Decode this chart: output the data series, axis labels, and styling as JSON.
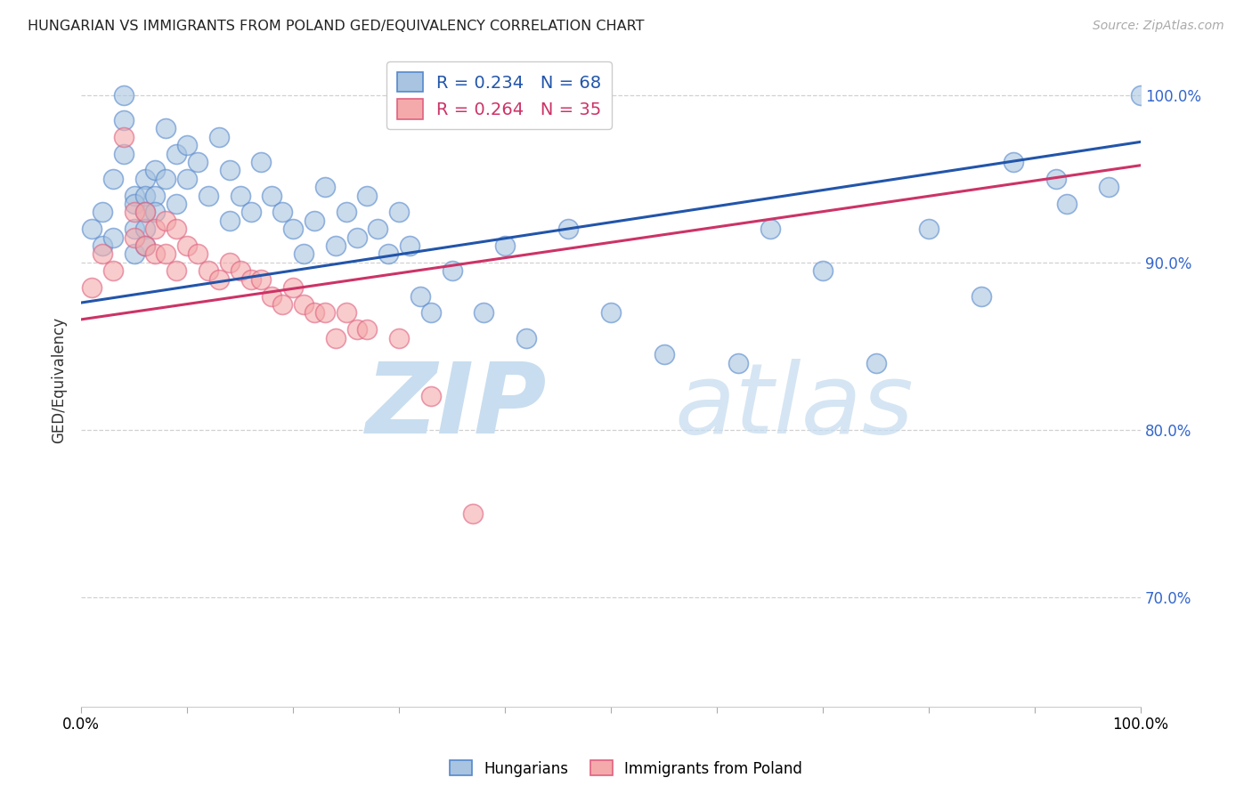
{
  "title": "HUNGARIAN VS IMMIGRANTS FROM POLAND GED/EQUIVALENCY CORRELATION CHART",
  "source": "Source: ZipAtlas.com",
  "ylabel": "GED/Equivalency",
  "xlim": [
    0.0,
    1.0
  ],
  "ylim": [
    0.635,
    1.025
  ],
  "yticks": [
    0.7,
    0.8,
    0.9,
    1.0
  ],
  "ytick_labels": [
    "70.0%",
    "80.0%",
    "90.0%",
    "100.0%"
  ],
  "xticks": [
    0.0,
    0.1,
    0.2,
    0.3,
    0.4,
    0.5,
    0.6,
    0.7,
    0.8,
    0.9,
    1.0
  ],
  "xtick_labels": [
    "0.0%",
    "",
    "",
    "",
    "",
    "",
    "",
    "",
    "",
    "",
    "100.0%"
  ],
  "blue_color": "#A8C4E0",
  "pink_color": "#F4AAAA",
  "blue_edge_color": "#5588CC",
  "pink_edge_color": "#E06080",
  "blue_line_color": "#2255AA",
  "pink_line_color": "#CC3366",
  "legend_blue_R": "0.234",
  "legend_blue_N": "68",
  "legend_pink_R": "0.264",
  "legend_pink_N": "35",
  "blue_line_y_start": 0.876,
  "blue_line_y_end": 0.972,
  "pink_line_y_start": 0.866,
  "pink_line_y_end": 0.958,
  "blue_scatter_x": [
    0.01,
    0.02,
    0.02,
    0.03,
    0.03,
    0.04,
    0.04,
    0.04,
    0.05,
    0.05,
    0.05,
    0.05,
    0.06,
    0.06,
    0.06,
    0.06,
    0.06,
    0.07,
    0.07,
    0.07,
    0.08,
    0.08,
    0.09,
    0.09,
    0.1,
    0.1,
    0.11,
    0.12,
    0.13,
    0.14,
    0.14,
    0.15,
    0.16,
    0.17,
    0.18,
    0.19,
    0.2,
    0.21,
    0.22,
    0.23,
    0.24,
    0.25,
    0.26,
    0.27,
    0.28,
    0.29,
    0.3,
    0.31,
    0.32,
    0.33,
    0.35,
    0.38,
    0.4,
    0.42,
    0.46,
    0.5,
    0.55,
    0.62,
    0.65,
    0.7,
    0.75,
    0.8,
    0.85,
    0.88,
    0.92,
    0.93,
    0.97,
    1.0
  ],
  "blue_scatter_y": [
    0.92,
    0.93,
    0.91,
    0.95,
    0.915,
    0.965,
    0.985,
    1.0,
    0.94,
    0.935,
    0.92,
    0.905,
    0.95,
    0.94,
    0.93,
    0.92,
    0.91,
    0.955,
    0.94,
    0.93,
    0.98,
    0.95,
    0.965,
    0.935,
    0.97,
    0.95,
    0.96,
    0.94,
    0.975,
    0.955,
    0.925,
    0.94,
    0.93,
    0.96,
    0.94,
    0.93,
    0.92,
    0.905,
    0.925,
    0.945,
    0.91,
    0.93,
    0.915,
    0.94,
    0.92,
    0.905,
    0.93,
    0.91,
    0.88,
    0.87,
    0.895,
    0.87,
    0.91,
    0.855,
    0.92,
    0.87,
    0.845,
    0.84,
    0.92,
    0.895,
    0.84,
    0.92,
    0.88,
    0.96,
    0.95,
    0.935,
    0.945,
    1.0
  ],
  "pink_scatter_x": [
    0.01,
    0.02,
    0.03,
    0.04,
    0.05,
    0.05,
    0.06,
    0.06,
    0.07,
    0.07,
    0.08,
    0.08,
    0.09,
    0.09,
    0.1,
    0.11,
    0.12,
    0.13,
    0.14,
    0.15,
    0.16,
    0.17,
    0.18,
    0.19,
    0.2,
    0.21,
    0.22,
    0.23,
    0.24,
    0.25,
    0.26,
    0.27,
    0.3,
    0.33,
    0.37
  ],
  "pink_scatter_y": [
    0.885,
    0.905,
    0.895,
    0.975,
    0.93,
    0.915,
    0.93,
    0.91,
    0.92,
    0.905,
    0.925,
    0.905,
    0.92,
    0.895,
    0.91,
    0.905,
    0.895,
    0.89,
    0.9,
    0.895,
    0.89,
    0.89,
    0.88,
    0.875,
    0.885,
    0.875,
    0.87,
    0.87,
    0.855,
    0.87,
    0.86,
    0.86,
    0.855,
    0.82,
    0.75
  ]
}
